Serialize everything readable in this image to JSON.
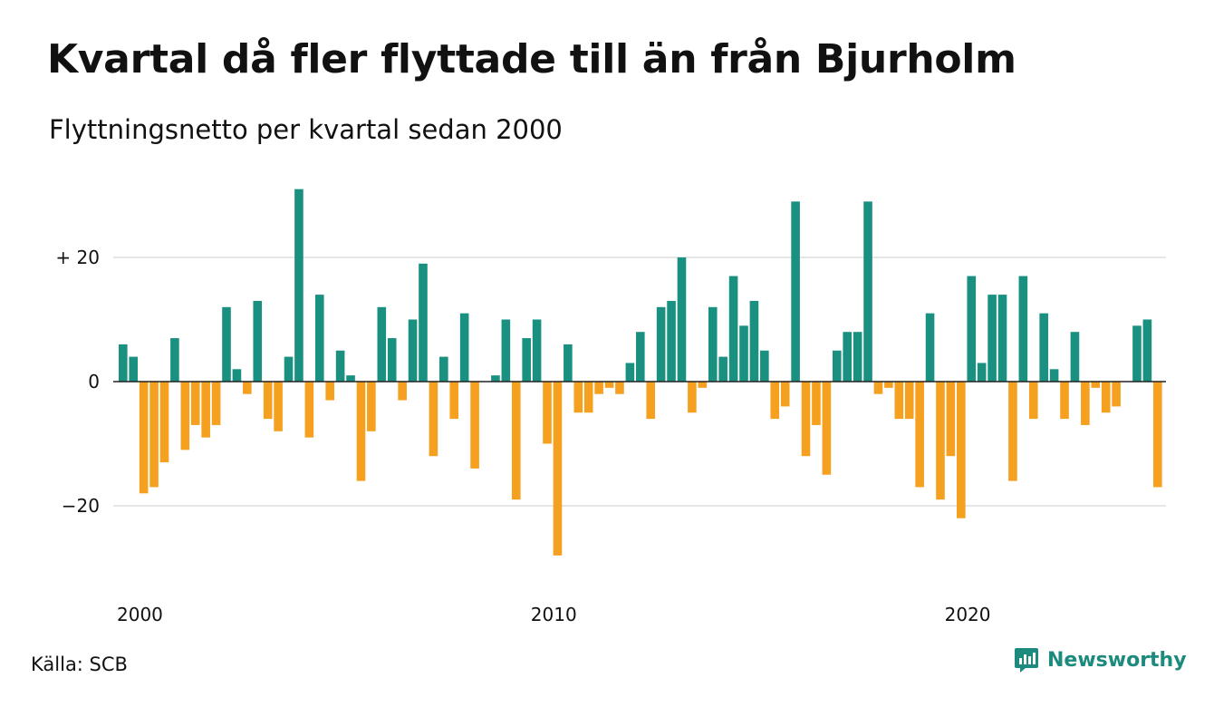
{
  "title": "Kvartal då fler flyttade till än från Bjurholm",
  "subtitle": "Flyttningsnetto per kvartal sedan 2000",
  "source": "Källa: SCB",
  "brand": {
    "name": "Newsworthy",
    "logo_icon": "newsworthy-chart-icon",
    "color": "#1c8b7d"
  },
  "chart_data": {
    "type": "bar",
    "title": "Kvartal då fler flyttade till än från Bjurholm",
    "subtitle": "Flyttningsnetto per kvartal sedan 2000",
    "xlabel": "",
    "ylabel": "",
    "ylim": [
      -30,
      33
    ],
    "grid": true,
    "legend": "none",
    "colors": {
      "positive": "#1a9080",
      "negative": "#f5a01f",
      "grid": "#dddddd",
      "axis": "#222222"
    },
    "y_ticks": [
      {
        "value": 20,
        "label": "+ 20"
      },
      {
        "value": 0,
        "label": "0"
      },
      {
        "value": -20,
        "label": "−20"
      }
    ],
    "x_ticks": [
      {
        "index": 0,
        "label": "2000"
      },
      {
        "index": 40,
        "label": "2010"
      },
      {
        "index": 80,
        "label": "2020"
      }
    ],
    "start_period": "2000 Q1",
    "values": [
      6,
      4,
      -18,
      -17,
      -13,
      7,
      -11,
      -7,
      -9,
      -7,
      12,
      2,
      -2,
      13,
      -6,
      -8,
      4,
      31,
      -9,
      14,
      -3,
      5,
      1,
      -16,
      -8,
      12,
      7,
      -3,
      10,
      19,
      -12,
      4,
      -6,
      11,
      -14,
      0,
      1,
      10,
      -19,
      7,
      10,
      -10,
      -28,
      6,
      -5,
      -5,
      -2,
      -1,
      -2,
      3,
      8,
      -6,
      12,
      13,
      20,
      -5,
      -1,
      12,
      4,
      17,
      9,
      13,
      5,
      -6,
      -4,
      29,
      -12,
      -7,
      -15,
      5,
      8,
      8,
      29,
      -2,
      -1,
      -6,
      -6,
      -17,
      11,
      -19,
      -12,
      -22,
      17,
      3,
      14,
      14,
      -16,
      17,
      -6,
      11,
      2,
      -6,
      8,
      -7,
      -1,
      -5,
      -4,
      0,
      9,
      10,
      -17
    ]
  }
}
